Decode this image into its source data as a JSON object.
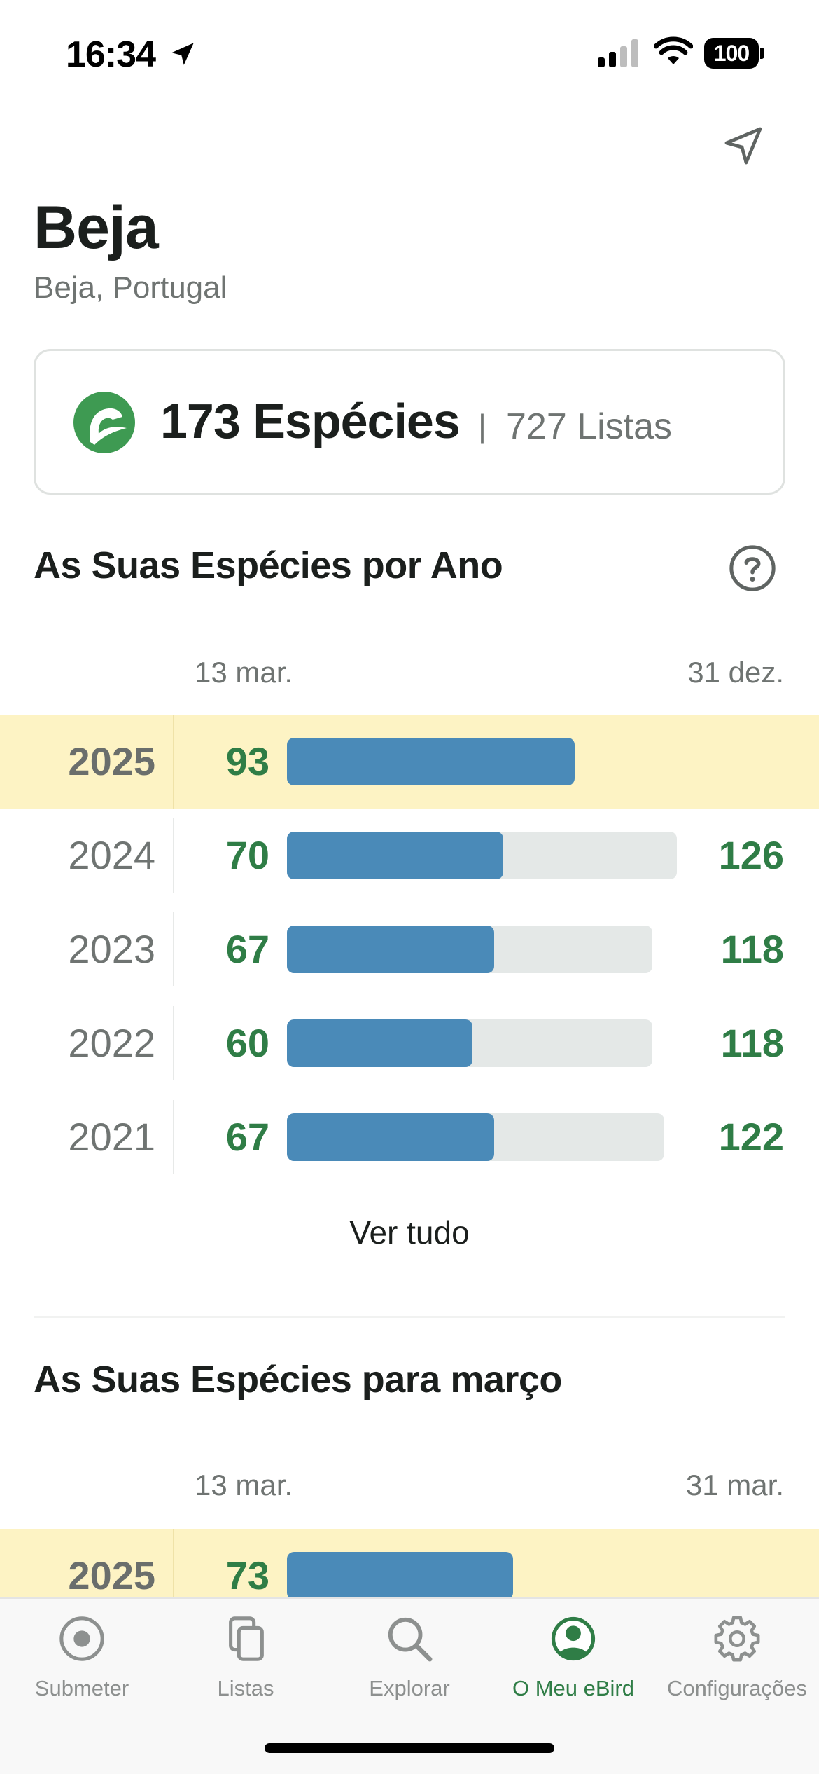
{
  "status_bar": {
    "time": "16:34",
    "battery": "100",
    "icons": [
      "location-arrow-icon",
      "cellular-signal-icon",
      "wifi-icon",
      "battery-icon"
    ]
  },
  "header": {
    "title": "Beja",
    "subtitle": "Beja, Portugal",
    "location_icon": "navigation-arrow-icon"
  },
  "stats": {
    "species": "173 Espécies",
    "separator": "|",
    "lists": "727 Listas"
  },
  "species_by_year": {
    "title": "As Suas Espécies por Ano",
    "help_icon": "question-circle-icon",
    "date_start": "13 mar.",
    "date_end": "31 dez.",
    "rows": [
      {
        "year": "2025",
        "count": "93",
        "total": "",
        "count_value": 93,
        "total_value": null,
        "current": true
      },
      {
        "year": "2024",
        "count": "70",
        "total": "126",
        "count_value": 70,
        "total_value": 126,
        "current": false
      },
      {
        "year": "2023",
        "count": "67",
        "total": "118",
        "count_value": 67,
        "total_value": 118,
        "current": false
      },
      {
        "year": "2022",
        "count": "60",
        "total": "118",
        "count_value": 60,
        "total_value": 118,
        "current": false
      },
      {
        "year": "2021",
        "count": "67",
        "total": "122",
        "count_value": 67,
        "total_value": 122,
        "current": false
      }
    ],
    "see_all": "Ver tudo"
  },
  "species_by_month": {
    "title": "As Suas Espécies para março",
    "date_start": "13 mar.",
    "date_end": "31 mar.",
    "rows": [
      {
        "year": "2025",
        "count": "73",
        "count_value": 73,
        "current": true
      }
    ]
  },
  "tab_bar": {
    "tabs": [
      {
        "label": "Submeter",
        "icon": "record-circle-icon",
        "active": false
      },
      {
        "label": "Listas",
        "icon": "stacked-pages-icon",
        "active": false
      },
      {
        "label": "Explorar",
        "icon": "search-icon",
        "active": false
      },
      {
        "label": "O Meu eBird",
        "icon": "profile-circle-icon",
        "active": true
      },
      {
        "label": "Configurações",
        "icon": "gear-icon",
        "active": false
      }
    ]
  },
  "colors": {
    "accent_green": "#2f7d46",
    "bar_blue": "#4a8ab8",
    "bar_track": "#e4e8e7",
    "current_year_highlight": "#fdf3c4"
  }
}
